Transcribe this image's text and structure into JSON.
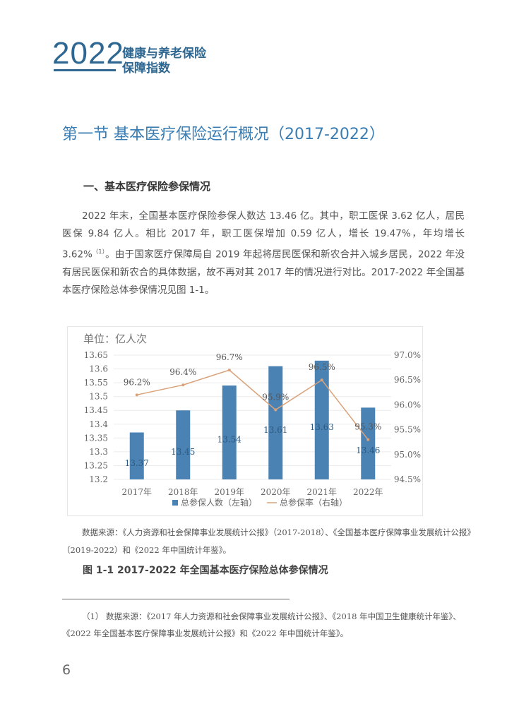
{
  "header": {
    "year": "2022",
    "title_line1": "健康与养老保险",
    "title_line2": "保障指数"
  },
  "section_title": "第一节  基本医疗保险运行概况（2017-2022）",
  "subheading": "一、基本医疗保险参保情况",
  "paragraph": {
    "text_before_sup": "2022 年末，全国基本医疗保险参保人数达 13.46 亿。其中，职工医保 3.62 亿人，居民医保 9.84 亿人。相比 2017 年，职工医保增加 0.59 亿人，增长 19.47%，年均增长 3.62%",
    "sup": "（1）",
    "text_after_sup": "。由于国家医疗保障局自 2019 年起将居民医保和新农合并入城乡居民，2022 年没有居民医保和新农合的具体数据，故不再对其 2017 年的情况进行对比。2017-2022 年全国基本医疗保险总体参保情况见图 1-1。"
  },
  "chart_data": {
    "type": "bar",
    "unit_label": "单位：亿人次",
    "categories": [
      "2017年",
      "2018年",
      "2019年",
      "2020年",
      "2021年",
      "2022年"
    ],
    "series": [
      {
        "name": "总参保人数（左轴）",
        "type": "bar",
        "axis": "left",
        "values": [
          13.37,
          13.45,
          13.54,
          13.61,
          13.63,
          13.46
        ],
        "labels": [
          "13.37",
          "13.45",
          "13.54",
          "13.61",
          "13.63",
          "13.46"
        ]
      },
      {
        "name": "总参保率（右轴）",
        "type": "line",
        "axis": "right",
        "values": [
          96.2,
          96.4,
          96.7,
          95.9,
          96.5,
          95.3
        ],
        "labels": [
          "96.2%",
          "96.4%",
          "96.7%",
          "95.9%",
          "96.5%",
          "95.3%"
        ]
      }
    ],
    "left_ylim": [
      13.2,
      13.65
    ],
    "left_ticks": [
      "13.2",
      "13.25",
      "13.3",
      "13.35",
      "13.4",
      "13.45",
      "13.5",
      "13.55",
      "13.6",
      "13.65"
    ],
    "right_ylim": [
      94.5,
      97.0
    ],
    "right_ticks": [
      "94.5%",
      "95.0%",
      "95.5%",
      "96.0%",
      "96.5%",
      "97.0%"
    ],
    "grid": true,
    "legend_position": "bottom",
    "colors": {
      "bar": "#4a82b4",
      "line": "#d9a27a"
    }
  },
  "source_note": "数据来源：《人力资源和社会保障事业发展统计公报》（2017-2018）、《全国基本医疗保障事业发展统计公报》（2019-2022）和《2022 年中国统计年鉴》。",
  "figure_caption": "图 1-1  2017-2022 年全国基本医疗保险总体参保情况",
  "footnote": "（1） 数据来源：《2017 年人力资源和社会保障事业发展统计公报》、《2018 年中国卫生健康统计年鉴》、《2022 年全国基本医疗保障事业发展统计公报》和《2022 年中国统计年鉴》。",
  "page_number": "6"
}
